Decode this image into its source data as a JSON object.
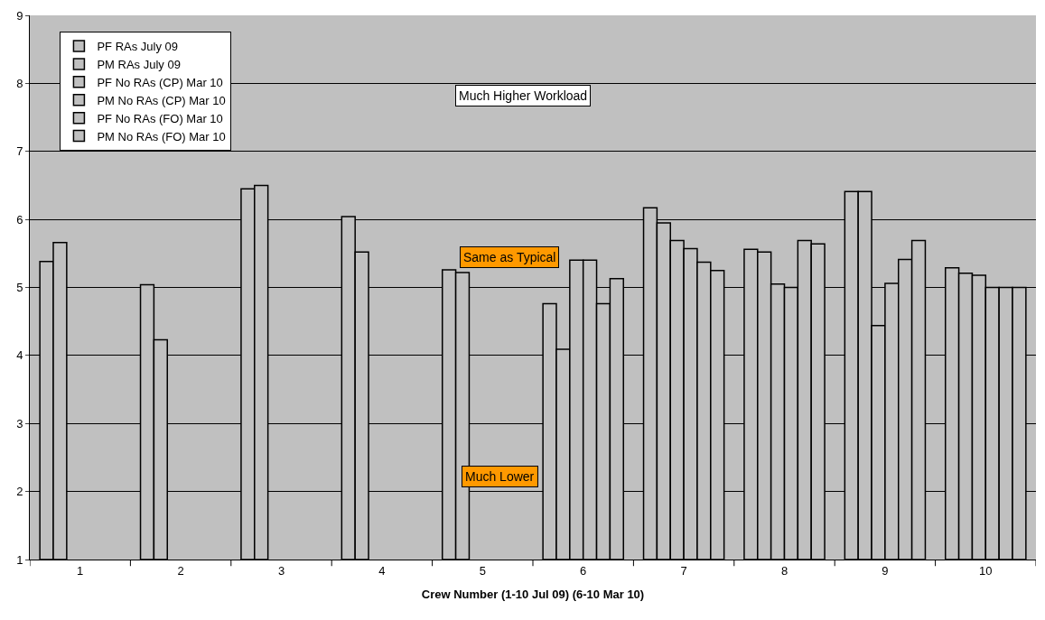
{
  "chart_data": {
    "type": "bar",
    "xlabel": "Crew Number (1-10 Jul 09) (6-10 Mar 10)",
    "categories": [
      "1",
      "2",
      "3",
      "4",
      "5",
      "6",
      "7",
      "8",
      "9",
      "10"
    ],
    "series": [
      {
        "name": "PF RAs July 09",
        "color": "#c0c0c0",
        "values": [
          5.38,
          5.04,
          6.45,
          6.04,
          5.26,
          4.76,
          6.17,
          5.56,
          6.41,
          5.29
        ]
      },
      {
        "name": "PM RAs July 09",
        "color": "#c0c0c0",
        "values": [
          5.66,
          4.23,
          6.5,
          5.52,
          5.22,
          4.09,
          5.95,
          5.52,
          6.41,
          5.21
        ]
      },
      {
        "name": "PF No RAs (CP) Mar 10",
        "color": "#c0c0c0",
        "values": [
          null,
          null,
          null,
          null,
          null,
          5.4,
          5.69,
          5.05,
          4.44,
          5.18
        ]
      },
      {
        "name": "PM No RAs (CP) Mar 10",
        "color": "#c0c0c0",
        "values": [
          null,
          null,
          null,
          null,
          null,
          5.4,
          5.57,
          5.0,
          5.06,
          5.0
        ]
      },
      {
        "name": "PF No RAs (FO) Mar 10",
        "color": "#c0c0c0",
        "values": [
          null,
          null,
          null,
          null,
          null,
          4.76,
          5.37,
          5.69,
          5.41,
          5.0
        ]
      },
      {
        "name": "PM No RAs (FO) Mar 10",
        "color": "#c0c0c0",
        "values": [
          null,
          null,
          null,
          null,
          null,
          5.13,
          5.25,
          5.64,
          5.69,
          5.0
        ]
      }
    ],
    "ylim": [
      1,
      9
    ],
    "yticks": [
      1,
      2,
      3,
      4,
      5,
      6,
      7,
      8,
      9
    ],
    "grid": "y",
    "legend": "top left",
    "annotations": [
      "Much Higher Workload",
      "Same as Typical",
      "Much Lower"
    ]
  }
}
